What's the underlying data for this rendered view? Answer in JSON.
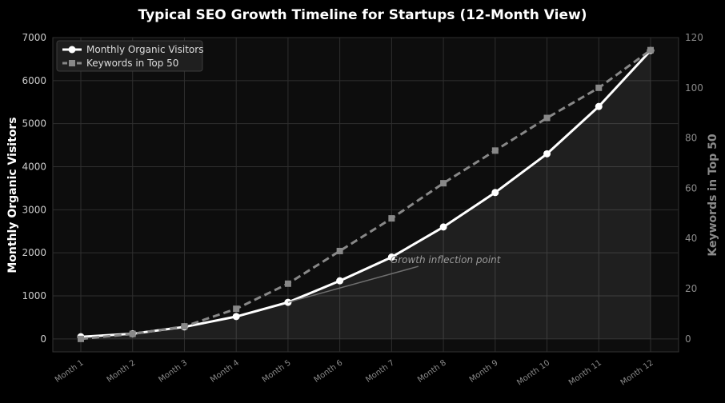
{
  "chart_data": {
    "type": "line",
    "title": "Typical SEO Growth Timeline for Startups (12-Month View)",
    "xlabel": "",
    "ylabel": "Monthly Organic Visitors",
    "y2label": "Keywords in Top 50",
    "categories": [
      "Month 1",
      "Month 2",
      "Month 3",
      "Month 4",
      "Month 5",
      "Month 6",
      "Month 7",
      "Month 8",
      "Month 9",
      "Month 10",
      "Month 11",
      "Month 12"
    ],
    "ylim": [
      -300,
      7000
    ],
    "y2lim": [
      -5.14,
      120
    ],
    "yticks": [
      0,
      1000,
      2000,
      3000,
      4000,
      5000,
      6000,
      7000
    ],
    "y2ticks": [
      0,
      20,
      40,
      60,
      80,
      100,
      120
    ],
    "grid": true,
    "legend_position": "top-left",
    "series": [
      {
        "name": "Monthly Organic Visitors",
        "axis": "left",
        "style": "solid",
        "marker": "circle",
        "fill": true,
        "color": "#ffffff",
        "values": [
          50,
          120,
          280,
          520,
          850,
          1350,
          1900,
          2600,
          3400,
          4300,
          5400,
          6700
        ]
      },
      {
        "name": "Keywords in Top 50",
        "axis": "right",
        "style": "dashed",
        "marker": "square",
        "fill": false,
        "color": "#888888",
        "values": [
          0,
          2,
          5,
          12,
          22,
          35,
          48,
          62,
          75,
          88,
          100,
          115
        ]
      }
    ],
    "annotations": [
      {
        "text": "Growth inflection point",
        "target_category": "Month 5",
        "target_value": 850
      }
    ]
  },
  "colors": {
    "background": "#000000",
    "plot_background": "#0d0d0d",
    "grid": "#2f2f2f",
    "axis_text": "#cccccc",
    "muted_text": "#8a8a8a",
    "primary": "#ffffff",
    "secondary": "#888888",
    "annotation": "#9a9a9a"
  }
}
